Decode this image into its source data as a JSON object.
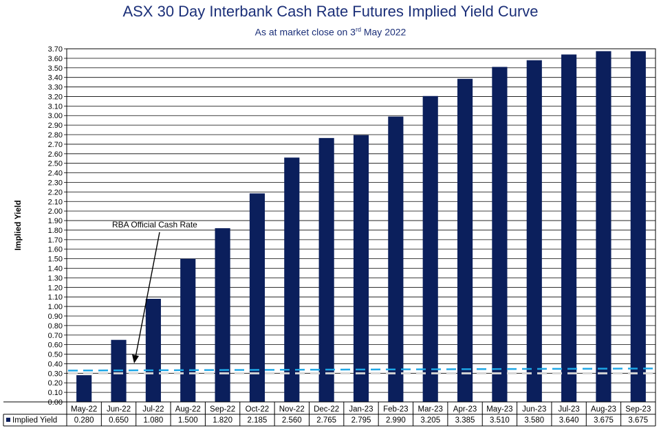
{
  "chart_data": {
    "type": "bar",
    "title": "ASX 30 Day Interbank Cash Rate Futures Implied Yield Curve",
    "subtitle_pre": "As at market close on 3",
    "subtitle_sup": "rd",
    "subtitle_post": " May 2022",
    "ylabel": "Implied Yield",
    "ylim": [
      0,
      3.7
    ],
    "ytick_step": 0.1,
    "grid": true,
    "categories": [
      "May-22",
      "Jun-22",
      "Jul-22",
      "Aug-22",
      "Sep-22",
      "Oct-22",
      "Nov-22",
      "Dec-22",
      "Jan-23",
      "Feb-23",
      "Mar-23",
      "Apr-23",
      "May-23",
      "Jun-23",
      "Jul-23",
      "Aug-23",
      "Sep-23"
    ],
    "series": [
      {
        "name": "Implied Yield",
        "values": [
          0.28,
          0.65,
          1.08,
          1.5,
          1.82,
          2.185,
          2.56,
          2.765,
          2.795,
          2.99,
          3.205,
          3.385,
          3.51,
          3.58,
          3.64,
          3.675,
          3.675
        ],
        "labels": [
          "0.280",
          "0.650",
          "1.080",
          "1.500",
          "1.820",
          "2.185",
          "2.560",
          "2.765",
          "2.795",
          "2.990",
          "3.205",
          "3.385",
          "3.510",
          "3.580",
          "3.640",
          "3.675",
          "3.675"
        ],
        "color": "#0b1f5c"
      }
    ],
    "reference_line": {
      "value": 0.35,
      "color": "#1ea7e6",
      "style": "dashed"
    },
    "annotation": {
      "text": "RBA Official Cash Rate"
    },
    "data_table": true
  }
}
